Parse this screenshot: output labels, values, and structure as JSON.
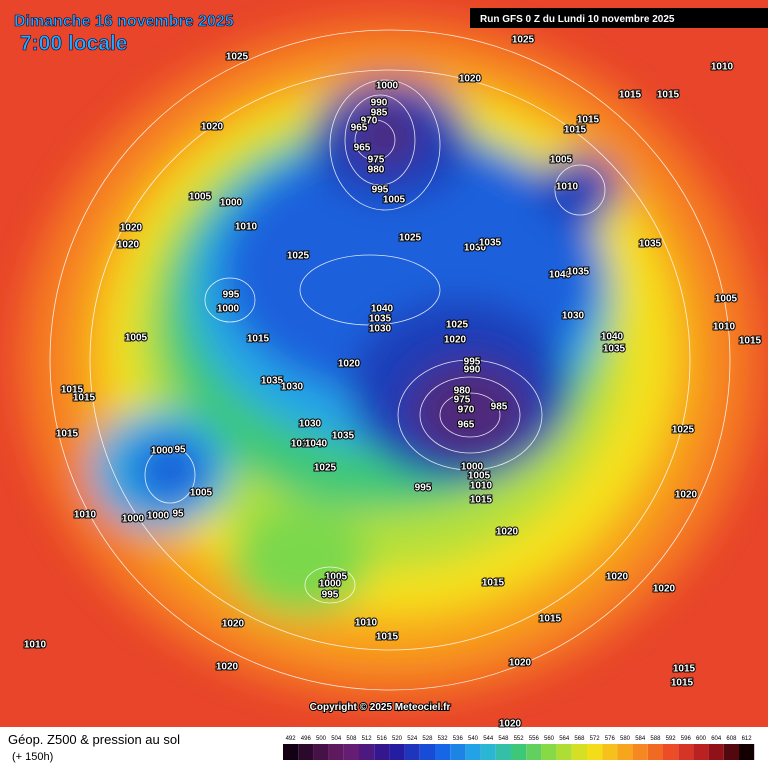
{
  "header": {
    "date": "Dimanche 16 novembre 2025",
    "time": "7:00 locale",
    "run": "Run GFS 0 Z du Lundi 10 novembre 2025"
  },
  "footer": {
    "copyright": "Copyright © 2025 Meteociel.fr",
    "legend_title": "Géop. Z500 & pression au sol",
    "legend_subtitle": "(+ 150h)",
    "scale_labels": [
      492,
      496,
      500,
      504,
      508,
      512,
      516,
      520,
      524,
      528,
      532,
      536,
      540,
      544,
      548,
      552,
      556,
      560,
      564,
      568,
      572,
      576,
      580,
      584,
      588,
      592,
      596,
      600,
      604,
      608,
      612
    ]
  },
  "isobar_labels": [
    1025,
    1010,
    1020,
    1015,
    1015,
    1025,
    1020,
    1000,
    990,
    985,
    970,
    965,
    965,
    975,
    980,
    995,
    1005,
    1015,
    1015,
    1005,
    1010,
    1005,
    1000,
    1010,
    1025,
    1030,
    1035,
    1035,
    1040,
    1035,
    1020,
    1020,
    1025,
    995,
    1000,
    1005,
    1015,
    1040,
    1035,
    1030,
    1025,
    1020,
    1030,
    1005,
    1040,
    1035,
    1010,
    1015,
    1020,
    995,
    990,
    980,
    975,
    970,
    965,
    985,
    1035,
    1030,
    1015,
    1015,
    1030,
    1035,
    1010,
    1040,
    1015,
    1025,
    1000,
    95,
    1025,
    1000,
    1005,
    1010,
    995,
    1015,
    1005,
    1010,
    1000,
    1000,
    95,
    1020,
    1020,
    1005,
    1000,
    995,
    1015,
    1020,
    1020,
    1015,
    1010,
    1015,
    1020,
    1010,
    1020,
    1020,
    1015,
    1015,
    1020
  ]
}
